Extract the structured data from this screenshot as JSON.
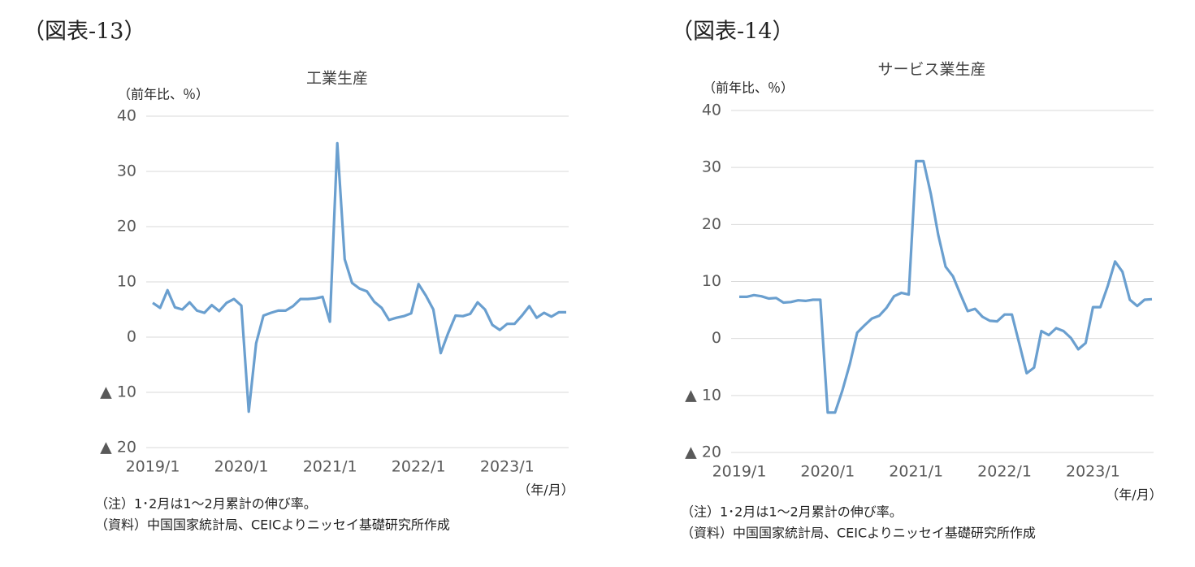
{
  "chart_data": [
    {
      "type": "line",
      "figure_label": "（図表-13）",
      "title": "工業生産",
      "y_label": "（前年比、％）",
      "x_label": "（年/月）",
      "notes": [
        "（注）1･2月は1～2月累計の伸び率。",
        "（資料）中国国家統計局、CEICよりニッセイ基礎研究所作成"
      ],
      "categories": [
        "2019/1",
        null,
        null,
        null,
        null,
        null,
        null,
        null,
        null,
        null,
        null,
        null,
        "2020/1",
        null,
        null,
        null,
        null,
        null,
        null,
        null,
        null,
        null,
        null,
        null,
        "2021/1",
        null,
        null,
        null,
        null,
        null,
        null,
        null,
        null,
        null,
        null,
        null,
        "2022/1",
        null,
        null,
        null,
        null,
        null,
        null,
        null,
        null,
        null,
        null,
        null,
        "2023/1",
        null,
        null,
        null,
        null,
        null,
        null,
        null,
        null
      ],
      "series": [
        {
          "name": "工業生産",
          "color": "#6a9fcf",
          "values": [
            6.2,
            5.3,
            8.5,
            5.4,
            5.0,
            6.3,
            4.8,
            4.4,
            5.8,
            4.7,
            6.2,
            6.9,
            5.7,
            -13.5,
            -1.1,
            3.9,
            4.4,
            4.8,
            4.8,
            5.6,
            6.9,
            6.9,
            7.0,
            7.3,
            2.8,
            35.1,
            14.1,
            9.8,
            8.8,
            8.3,
            6.4,
            5.3,
            3.1,
            3.5,
            3.8,
            4.3,
            9.6,
            7.5,
            5.0,
            -2.9,
            0.7,
            3.9,
            3.8,
            4.2,
            6.3,
            5.0,
            2.2,
            1.3,
            2.4,
            2.4,
            3.9,
            5.6,
            3.5,
            4.4,
            3.7,
            4.5,
            4.5
          ]
        }
      ],
      "ylim": [
        -20,
        40
      ],
      "yticks": [
        {
          "value": -20,
          "label": "▲ 20"
        },
        {
          "value": -10,
          "label": "▲ 10"
        },
        0,
        10,
        20,
        30,
        40
      ],
      "grid": true
    },
    {
      "type": "line",
      "figure_label": "（図表-14）",
      "title": "サービス業生産",
      "y_label": "（前年比、％）",
      "x_label": "（年/月）",
      "notes": [
        "（注）1･2月は1～2月累計の伸び率。",
        "（資料）中国国家統計局、CEICよりニッセイ基礎研究所作成"
      ],
      "categories": [
        "2019/1",
        null,
        null,
        null,
        null,
        null,
        null,
        null,
        null,
        null,
        null,
        null,
        "2020/1",
        null,
        null,
        null,
        null,
        null,
        null,
        null,
        null,
        null,
        null,
        null,
        "2021/1",
        null,
        null,
        null,
        null,
        null,
        null,
        null,
        null,
        null,
        null,
        null,
        "2022/1",
        null,
        null,
        null,
        null,
        null,
        null,
        null,
        null,
        null,
        null,
        null,
        "2023/1",
        null,
        null,
        null,
        null,
        null,
        null,
        null,
        null
      ],
      "series": [
        {
          "name": "サービス業生産",
          "color": "#6a9fcf",
          "values": [
            7.3,
            7.3,
            7.6,
            7.4,
            7.0,
            7.1,
            6.3,
            6.4,
            6.7,
            6.6,
            6.8,
            6.8,
            -13.0,
            -13.0,
            -9.1,
            -4.5,
            1.0,
            2.3,
            3.5,
            4.0,
            5.4,
            7.4,
            8.0,
            7.7,
            31.1,
            31.1,
            25.3,
            18.2,
            12.6,
            10.9,
            7.8,
            4.8,
            5.2,
            3.8,
            3.1,
            3.0,
            4.2,
            4.2,
            -0.9,
            -6.1,
            -5.1,
            1.3,
            0.6,
            1.8,
            1.3,
            0.1,
            -1.9,
            -0.8,
            5.5,
            5.5,
            9.2,
            13.5,
            11.7,
            6.8,
            5.7,
            6.8,
            6.9
          ]
        }
      ],
      "ylim": [
        -20,
        40
      ],
      "yticks": [
        {
          "value": -20,
          "label": "▲ 20"
        },
        {
          "value": -10,
          "label": "▲ 10"
        },
        0,
        10,
        20,
        30,
        40
      ],
      "grid": true
    }
  ]
}
